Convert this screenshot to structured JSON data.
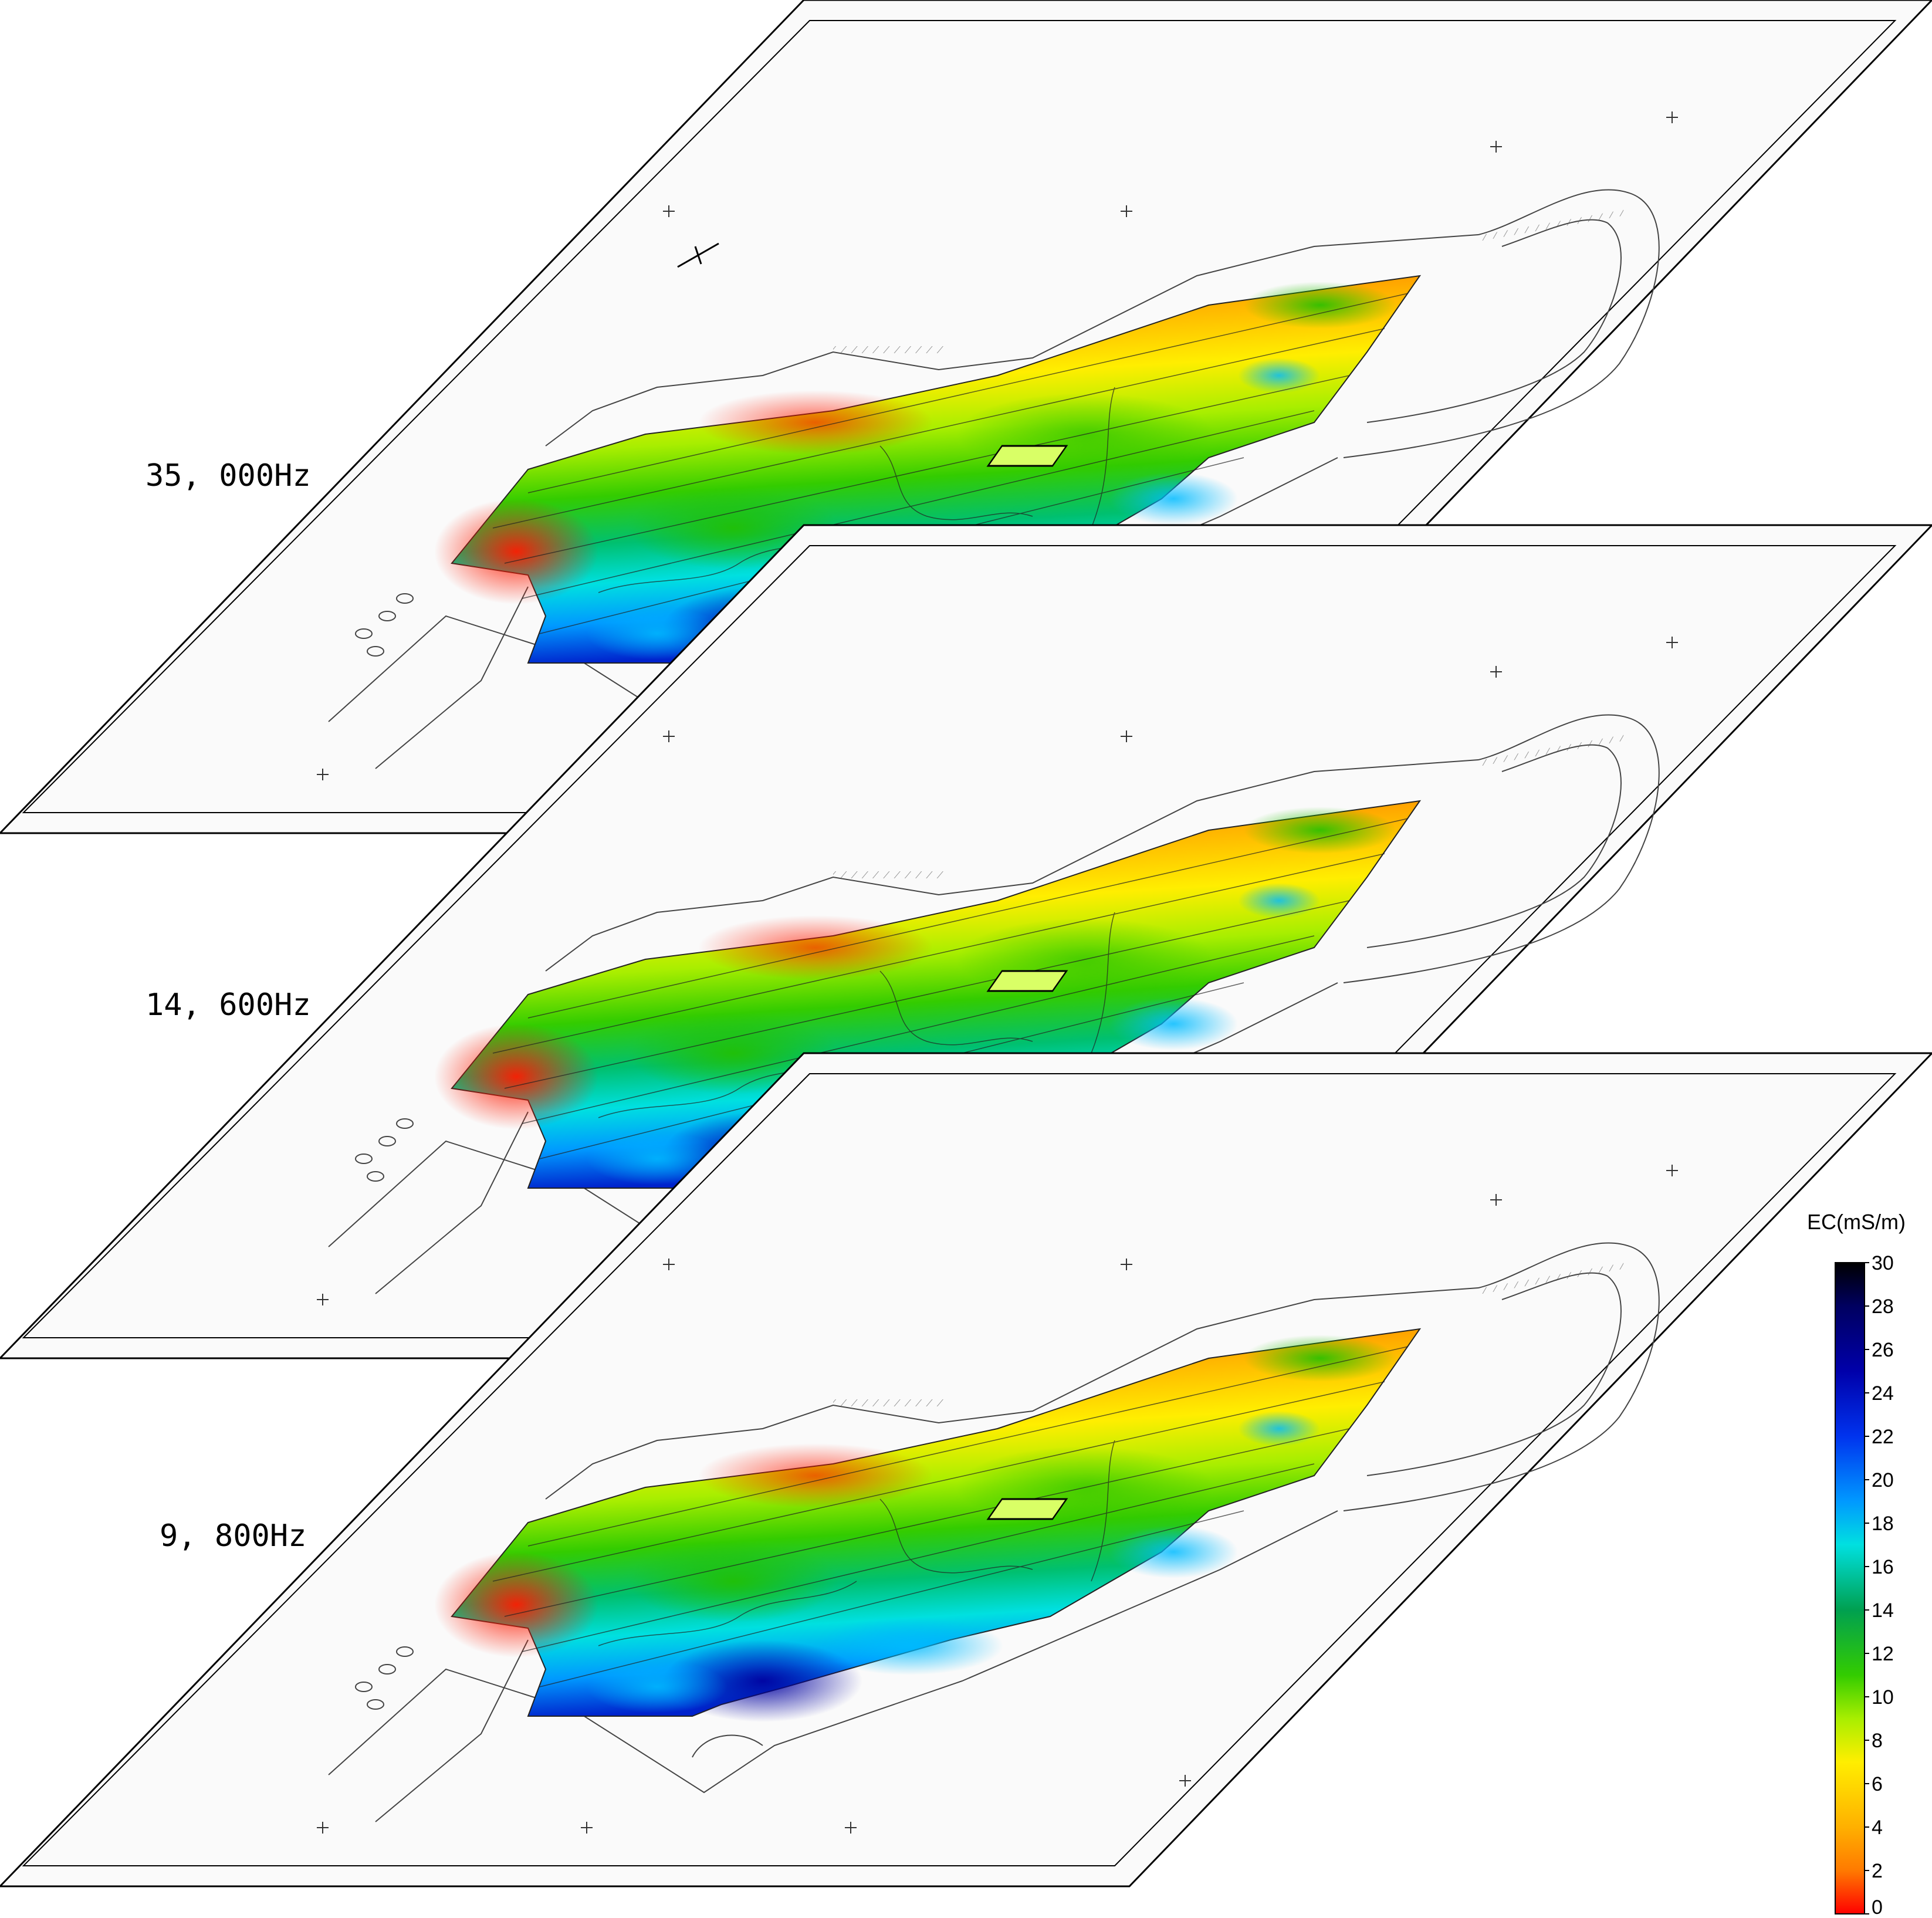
{
  "layers": [
    {
      "frequency_label": "35, 000Hz"
    },
    {
      "frequency_label": "14, 600Hz"
    },
    {
      "frequency_label": "9, 800Hz"
    }
  ],
  "colorbar": {
    "title": "EC(mS/m)",
    "ticks": [
      "30",
      "28",
      "26",
      "24",
      "22",
      "20",
      "18",
      "16",
      "14",
      "12",
      "10",
      "8",
      "6",
      "4",
      "2",
      "0"
    ],
    "range": [
      0,
      30
    ],
    "stops": [
      {
        "value": 0,
        "color": "#ff0000"
      },
      {
        "value": 2,
        "color": "#ff7a00"
      },
      {
        "value": 4,
        "color": "#ffb000"
      },
      {
        "value": 7,
        "color": "#ffee00"
      },
      {
        "value": 9,
        "color": "#a8ee00"
      },
      {
        "value": 11,
        "color": "#33cc00"
      },
      {
        "value": 14,
        "color": "#00a050"
      },
      {
        "value": 17,
        "color": "#00e0e0"
      },
      {
        "value": 19,
        "color": "#0099ff"
      },
      {
        "value": 22,
        "color": "#0033ee"
      },
      {
        "value": 25,
        "color": "#0000aa"
      },
      {
        "value": 28,
        "color": "#000060"
      },
      {
        "value": 30,
        "color": "#000000"
      }
    ]
  }
}
